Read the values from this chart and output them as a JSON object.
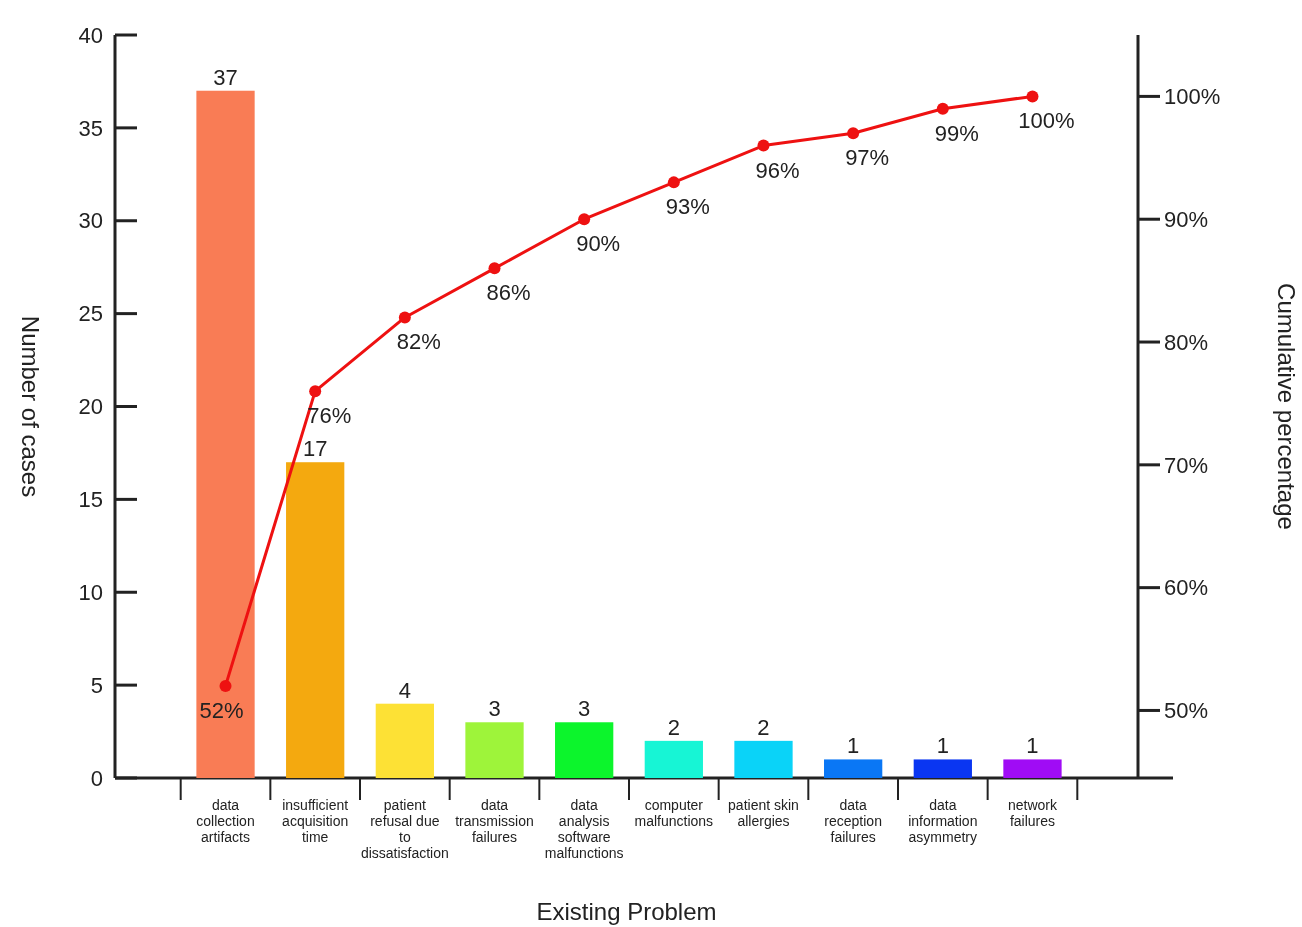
{
  "chart_data": {
    "type": "bar",
    "xlabel": "Existing Problem",
    "ylabel": "Number of cases",
    "y2label": "Cumulative percentage",
    "categories": [
      "data collection artifacts",
      "insufficient acquisition time",
      "patient refusal due to dissatisfaction",
      "data transmission failures",
      "data analysis software malfunctions",
      "computer malfunctions",
      "patient skin allergies",
      "data reception failures",
      "data information asymmetry",
      "network failures"
    ],
    "ylim": [
      0,
      40
    ],
    "yticks": [
      0,
      5,
      10,
      15,
      20,
      25,
      30,
      35,
      40
    ],
    "y2lim": [
      44.5,
      105
    ],
    "y2ticks": [
      {
        "value": 50,
        "label": "50%"
      },
      {
        "value": 60,
        "label": "60%"
      },
      {
        "value": 70,
        "label": "70%"
      },
      {
        "value": 80,
        "label": "80%"
      },
      {
        "value": 90,
        "label": "90%"
      },
      {
        "value": 100,
        "label": "100%"
      }
    ],
    "data_labels": true,
    "marker": "circle",
    "grid": false,
    "series": [
      {
        "colors": [
          "#f97c55",
          "#f4a90f",
          "#fde135",
          "#9ef43a",
          "#0cf52c",
          "#17f5d5",
          "#0ad3f8",
          "#0a77f5",
          "#0a36f2",
          "#a00cf5"
        ],
        "values": [
          37,
          17,
          4,
          3,
          3,
          2,
          2,
          1,
          1,
          1
        ]
      },
      {
        "type": "line",
        "axis": "y2",
        "color": "#ee1111",
        "values": [
          52,
          76,
          82,
          86,
          90,
          93,
          96,
          97,
          99,
          100
        ],
        "value_labels": [
          "52%",
          "76%",
          "82%",
          "86%",
          "90%",
          "93%",
          "96%",
          "97%",
          "99%",
          "100%"
        ]
      }
    ]
  }
}
